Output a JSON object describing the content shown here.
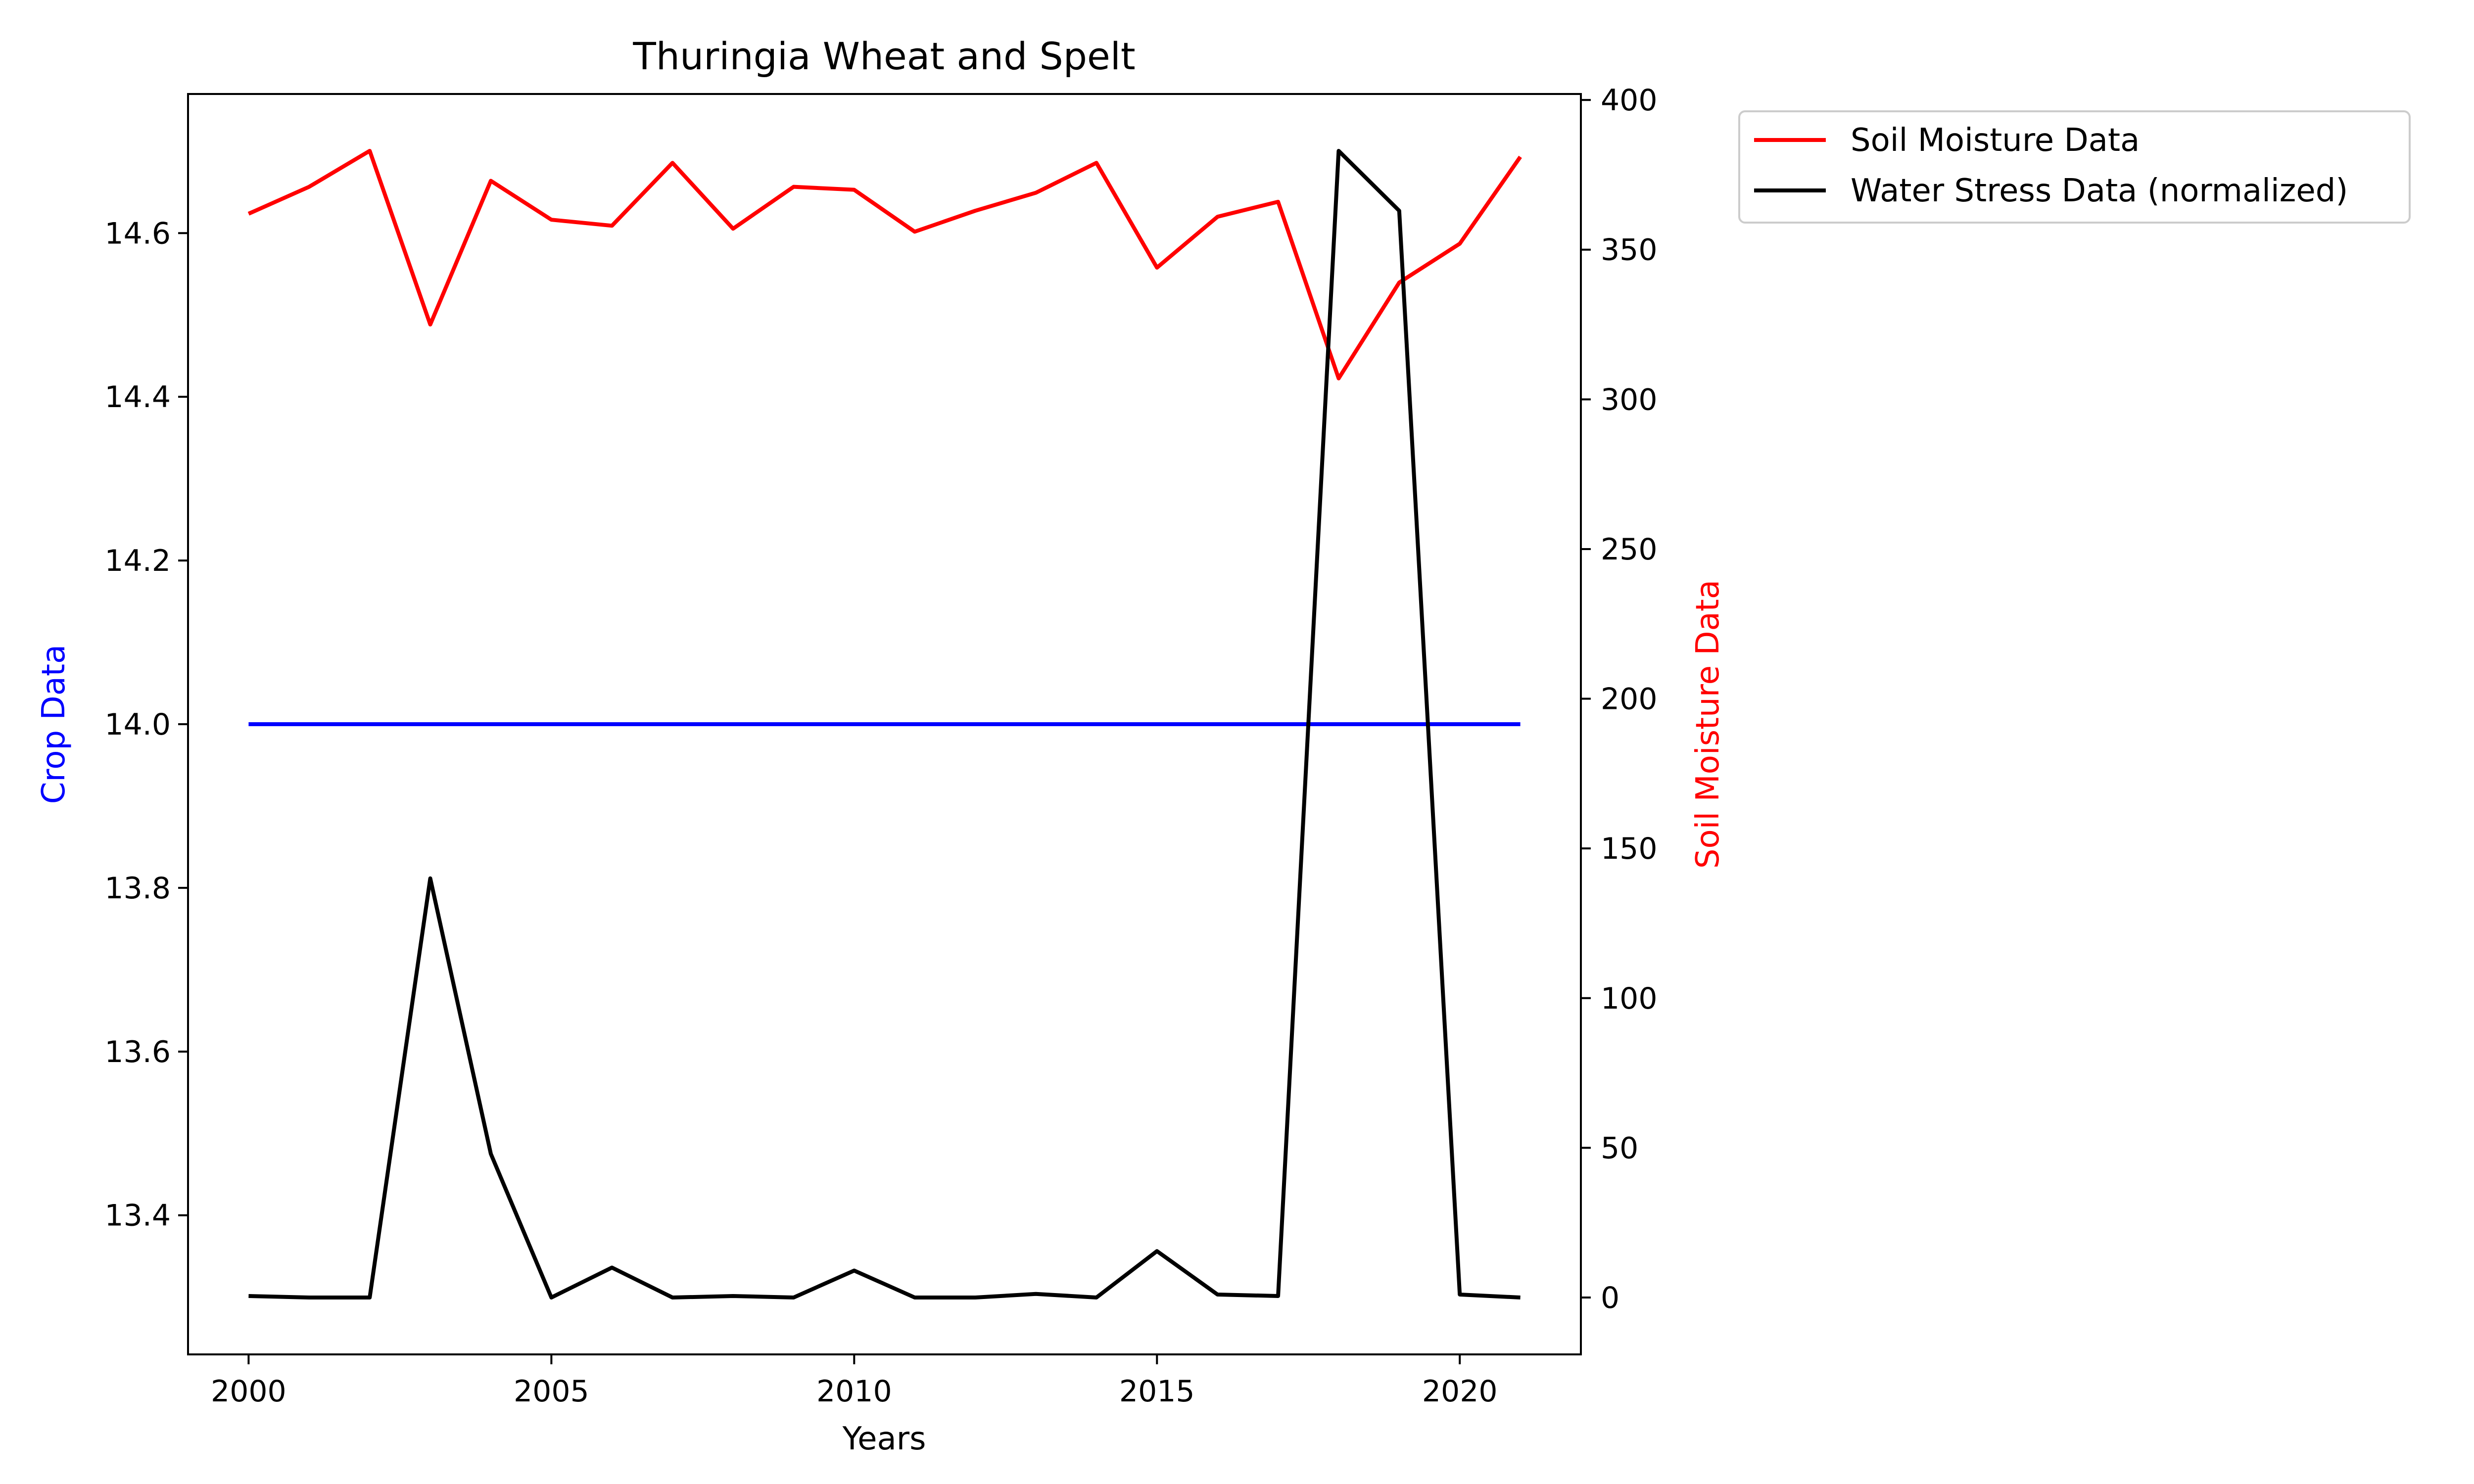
{
  "chart_data": {
    "type": "line",
    "title": "Thuringia Wheat and Spelt",
    "xlabel": "Years",
    "ylabel_left": "Crop Data",
    "ylabel_right": "Soil Moisture Data",
    "xlim": [
      1999,
      2022
    ],
    "ylim_left": [
      13.23,
      14.77
    ],
    "ylim_right": [
      -19,
      402
    ],
    "x": [
      2000,
      2001,
      2002,
      2003,
      2004,
      2005,
      2006,
      2007,
      2008,
      2009,
      2010,
      2011,
      2012,
      2013,
      2014,
      2015,
      2016,
      2017,
      2018,
      2019,
      2020,
      2021
    ],
    "x_ticks": [
      "2000",
      "2005",
      "2010",
      "2015",
      "2020"
    ],
    "y_left_ticks": [
      "13.4",
      "13.6",
      "13.8",
      "14.0",
      "14.2",
      "14.4",
      "14.6"
    ],
    "y_right_ticks": [
      "0",
      "50",
      "100",
      "150",
      "200",
      "250",
      "300",
      "350",
      "400"
    ],
    "grid": false,
    "legend_position": "outside-top-right",
    "series": [
      {
        "name": "",
        "axis": "left",
        "color": "#0000ff",
        "values": [
          14.0,
          14.0,
          14.0,
          14.0,
          14.0,
          14.0,
          14.0,
          14.0,
          14.0,
          14.0,
          14.0,
          14.0,
          14.0,
          14.0,
          14.0,
          14.0,
          14.0,
          14.0,
          14.0,
          14.0,
          14.0,
          14.0
        ]
      },
      {
        "name": "Soil Moisture Data",
        "axis": "right",
        "color": "#ff0000",
        "values": [
          362,
          371,
          383,
          325,
          373,
          360,
          358,
          379,
          357,
          371,
          370,
          356,
          363,
          369,
          379,
          344,
          361,
          366,
          307,
          339,
          352,
          381
        ]
      },
      {
        "name": "Water Stress Data (normalized)",
        "axis": "right",
        "color": "#000000",
        "values": [
          0.5,
          0,
          0,
          140,
          48,
          0,
          10,
          0,
          0.5,
          0,
          9,
          0,
          0,
          1.2,
          0,
          15.5,
          1,
          0.5,
          383,
          363,
          1,
          0
        ]
      }
    ]
  }
}
